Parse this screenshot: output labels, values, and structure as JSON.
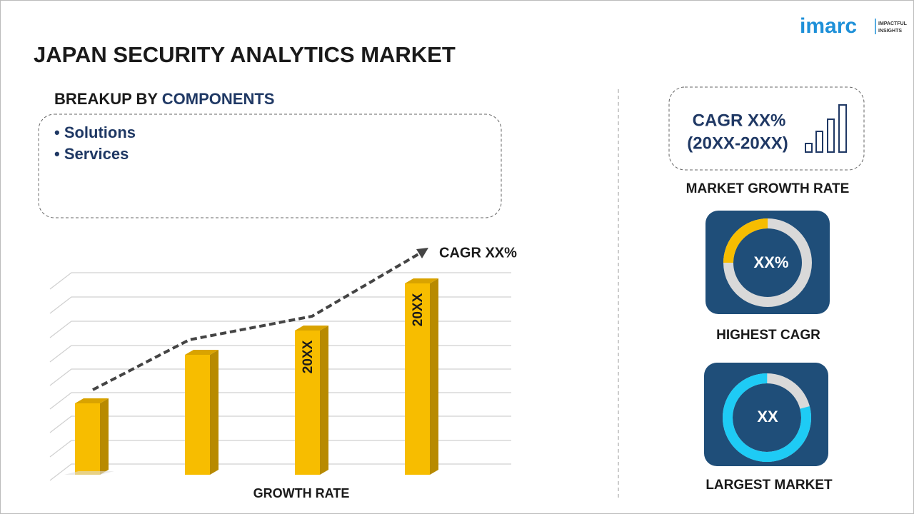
{
  "logo": {
    "brand": "imarc",
    "tagline_1": "IMPACTFUL",
    "tagline_2": "INSIGHTS"
  },
  "header": {
    "title": "JAPAN SECURITY ANALYTICS MARKET"
  },
  "breakup": {
    "heading_prefix": "BREAKUP BY",
    "heading_topic": "COMPONENTS",
    "items": [
      "• Solutions",
      "• Services"
    ]
  },
  "growth_chart": {
    "trend_label": "CAGR XX%",
    "bar_labels": [
      "20XX",
      "20XX"
    ],
    "axis_label": "GROWTH RATE"
  },
  "side_panel": {
    "cagr_box": {
      "line_1": "CAGR XX%",
      "line_2": "(20XX-20XX)",
      "caption": "MARKET GROWTH RATE"
    },
    "highest_cagr": {
      "value": "XX%",
      "caption": "HIGHEST CAGR"
    },
    "largest_market": {
      "value": "XX",
      "caption": "LARGEST MARKET"
    }
  }
}
